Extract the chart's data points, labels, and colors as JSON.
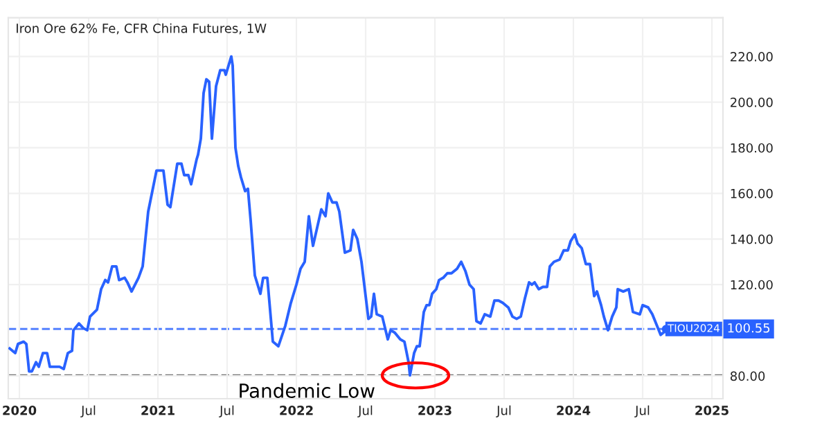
{
  "chart_data": {
    "type": "line",
    "title": "Iron Ore 62% Fe, CFR China Futures, 1W",
    "x": [
      2019.93,
      2019.97,
      2019.99,
      2020.03,
      2020.05,
      2020.07,
      2020.09,
      2020.12,
      2020.14,
      2020.17,
      2020.2,
      2020.22,
      2020.26,
      2020.29,
      2020.32,
      2020.35,
      2020.38,
      2020.39,
      2020.43,
      2020.46,
      2020.49,
      2020.51,
      2020.56,
      2020.59,
      2020.62,
      2020.64,
      2020.67,
      2020.7,
      2020.72,
      2020.76,
      2020.78,
      2020.81,
      2020.86,
      2020.89,
      2020.93,
      2020.99,
      2021.04,
      2021.07,
      2021.09,
      2021.14,
      2021.17,
      2021.19,
      2021.22,
      2021.24,
      2021.28,
      2021.29,
      2021.31,
      2021.33,
      2021.35,
      2021.37,
      2021.39,
      2021.42,
      2021.45,
      2021.48,
      2021.49,
      2021.53,
      2021.54,
      2021.56,
      2021.58,
      2021.6,
      2021.63,
      2021.65,
      2021.67,
      2021.7,
      2021.74,
      2021.76,
      2021.79,
      2021.83,
      2021.87,
      2021.92,
      2021.96,
      2022.0,
      2022.03,
      2022.06,
      2022.09,
      2022.12,
      2022.18,
      2022.21,
      2022.23,
      2022.26,
      2022.29,
      2022.31,
      2022.35,
      2022.39,
      2022.41,
      2022.44,
      2022.47,
      2022.5,
      2022.52,
      2022.54,
      2022.56,
      2022.58,
      2022.62,
      2022.66,
      2022.68,
      2022.71,
      2022.75,
      2022.78,
      2022.81,
      2022.82,
      2022.85,
      2022.87,
      2022.89,
      2022.92,
      2022.94,
      2022.96,
      2022.98,
      2023.01,
      2023.03,
      2023.06,
      2023.09,
      2023.12,
      2023.16,
      2023.19,
      2023.22,
      2023.25,
      2023.28,
      2023.3,
      2023.33,
      2023.36,
      2023.4,
      2023.43,
      2023.46,
      2023.49,
      2023.53,
      2023.56,
      2023.59,
      2023.62,
      2023.65,
      2023.68,
      2023.7,
      2023.72,
      2023.75,
      2023.78,
      2023.81,
      2023.83,
      2023.86,
      2023.9,
      2023.93,
      2023.96,
      2023.98,
      2024.01,
      2024.03,
      2024.06,
      2024.09,
      2024.12,
      2024.15,
      2024.17,
      2024.2,
      2024.22,
      2024.25,
      2024.28,
      2024.31,
      2024.32,
      2024.36,
      2024.4,
      2024.43,
      2024.48,
      2024.5,
      2024.54,
      2024.57,
      2024.61,
      2024.63,
      2024.65,
      2024.67
    ],
    "series": [
      {
        "color": "#2962ff",
        "values": [
          92,
          90,
          94,
          95,
          94,
          82,
          82,
          86,
          84,
          90,
          90,
          84,
          84,
          84,
          83,
          90,
          91,
          100,
          103,
          101,
          100,
          106,
          109,
          118,
          122,
          121,
          128,
          128,
          122,
          123,
          121,
          117,
          123,
          128,
          152,
          170,
          170,
          155,
          154,
          173,
          173,
          168,
          168,
          164,
          175,
          177,
          184,
          204,
          210,
          209,
          184,
          207,
          214,
          214,
          212,
          220,
          216,
          180,
          172,
          167,
          161,
          162,
          148,
          124,
          116,
          123,
          123,
          95,
          93,
          102,
          112,
          120,
          127,
          130,
          150,
          137,
          153,
          150,
          160,
          156,
          156,
          152,
          134,
          135,
          144,
          140,
          130,
          115,
          105,
          106,
          116,
          107,
          106,
          96,
          100,
          99,
          96,
          95,
          86,
          80.2,
          90,
          93,
          93,
          108,
          111,
          111,
          116,
          118,
          122,
          123,
          125,
          125,
          127,
          130,
          126,
          120,
          118,
          104,
          103,
          107,
          106,
          113,
          113,
          112,
          110,
          106,
          105,
          106,
          114,
          121,
          120,
          121,
          118,
          119,
          119,
          128,
          130,
          131,
          135,
          135,
          139,
          142,
          138,
          136,
          129,
          129,
          115,
          117,
          111,
          106,
          100,
          106,
          110,
          118,
          117,
          118,
          108,
          107,
          111,
          110,
          107,
          101,
          98,
          99,
          100.5
        ]
      }
    ],
    "xlim": [
      2019.92,
      2025.08
    ],
    "ylim": [
      70,
      237
    ],
    "xticks": [
      {
        "value": 2020,
        "label": "2020"
      },
      {
        "value": 2020.5,
        "label": "Jul"
      },
      {
        "value": 2021,
        "label": "2021"
      },
      {
        "value": 2021.5,
        "label": "Jul"
      },
      {
        "value": 2022,
        "label": "2022"
      },
      {
        "value": 2022.5,
        "label": "Jul"
      },
      {
        "value": 2023,
        "label": "2023"
      },
      {
        "value": 2023.5,
        "label": "Jul"
      },
      {
        "value": 2024,
        "label": "2024"
      },
      {
        "value": 2024.5,
        "label": "Jul"
      },
      {
        "value": 2025,
        "label": "2025"
      }
    ],
    "yticks": [
      {
        "value": 80,
        "label": "80.00"
      },
      {
        "value": 120,
        "label": "120.00"
      },
      {
        "value": 140,
        "label": "140.00"
      },
      {
        "value": 160,
        "label": "160.00"
      },
      {
        "value": 180,
        "label": "180.00"
      },
      {
        "value": 200,
        "label": "200.00"
      },
      {
        "value": 220,
        "label": "220.00"
      }
    ],
    "grid": true,
    "line_style": "solid",
    "ref_lines": [
      {
        "axis": "y",
        "value": 100.55,
        "label": "100.55",
        "color": "#2962ff",
        "line_style": "dashed"
      },
      {
        "axis": "y",
        "value": 80.2,
        "color": "#555555",
        "line_style": "dashed"
      }
    ],
    "annotations": [
      {
        "text": "Pandemic Low",
        "x": 2022.82,
        "y": 80.2
      },
      "TIOU2024"
    ]
  }
}
